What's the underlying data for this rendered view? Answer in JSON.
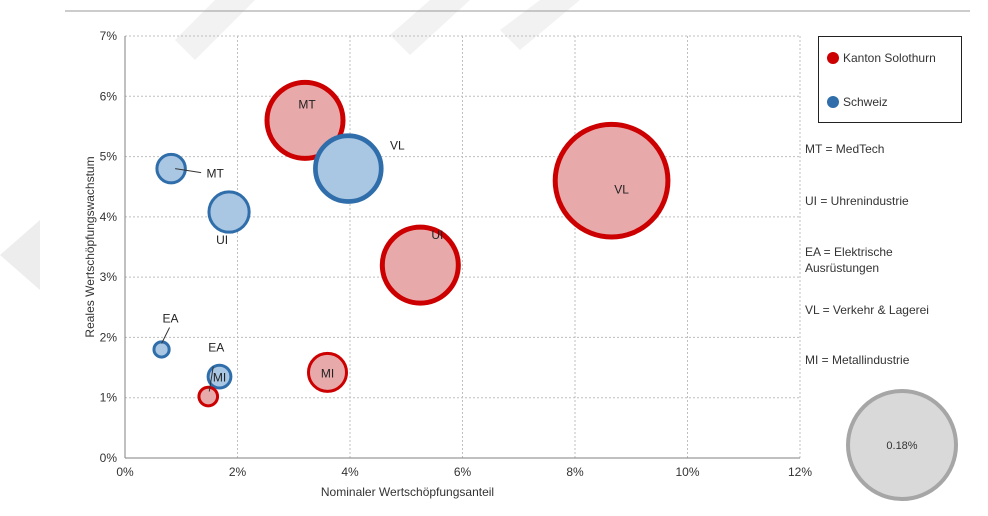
{
  "chart_data": {
    "type": "bubble",
    "xlabel": "Nominaler Wertschöpfungsanteil",
    "ylabel": "Reales  Wertschöpfungswachstum",
    "xlim": [
      0,
      12
    ],
    "ylim": [
      0,
      7
    ],
    "x_ticks": [
      "0%",
      "2%",
      "4%",
      "6%",
      "8%",
      "10%",
      "12%"
    ],
    "y_ticks": [
      "0%",
      "1%",
      "2%",
      "3%",
      "4%",
      "5%",
      "6%",
      "7%"
    ],
    "grid": true,
    "legend_position": "right",
    "series": [
      {
        "name": "Kanton Solothurn",
        "fill": "#e8a9ab",
        "stroke": "#cc0000",
        "points": [
          {
            "label": "MT",
            "x": 3.2,
            "y": 5.6,
            "size": 1.0
          },
          {
            "label": "UI",
            "x": 5.25,
            "y": 3.2,
            "size": 1.0
          },
          {
            "label": "VL",
            "x": 8.65,
            "y": 4.6,
            "size": 2.2
          },
          {
            "label": "MI",
            "x": 3.6,
            "y": 1.42,
            "size": 0.25
          },
          {
            "label": "EA",
            "x": 1.48,
            "y": 1.02,
            "size": 0.06
          }
        ]
      },
      {
        "name": "Schweiz",
        "fill": "#a9c6e3",
        "stroke": "#2f6eaa",
        "points": [
          {
            "label": "MT",
            "x": 0.82,
            "y": 4.8,
            "size": 0.14
          },
          {
            "label": "UI",
            "x": 1.85,
            "y": 4.08,
            "size": 0.28
          },
          {
            "label": "VL",
            "x": 3.97,
            "y": 4.8,
            "size": 0.75
          },
          {
            "label": "EA",
            "x": 0.65,
            "y": 1.8,
            "size": 0.04
          },
          {
            "label": "MI",
            "x": 1.68,
            "y": 1.35,
            "size": 0.09
          }
        ]
      }
    ],
    "reference_bubble": {
      "label": "0.18%",
      "fill": "#d9d9d9",
      "stroke": "#a6a6a6"
    }
  },
  "legend": {
    "items": [
      {
        "label": "Kanton Solothurn",
        "color": "#cc0000"
      },
      {
        "label": "Schweiz",
        "color": "#2f6eaa"
      }
    ]
  },
  "abbreviations": [
    "MT = MedTech",
    "UI = Uhrenindustrie",
    "EA = Elektrische Ausrüstungen",
    "VL = Verkehr & Lagerei",
    "MI = Metallindustrie"
  ]
}
